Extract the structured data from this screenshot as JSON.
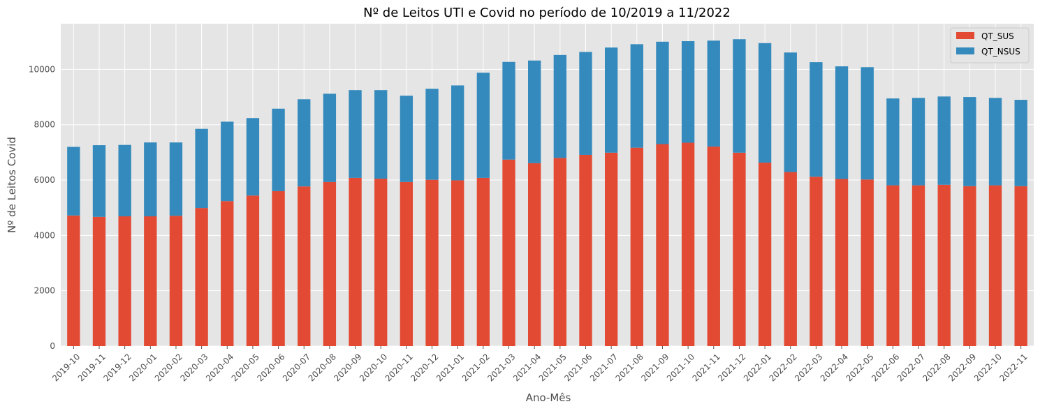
{
  "chart_data": {
    "type": "bar",
    "stacked": true,
    "title": "Nº de Leitos UTI e Covid no período de 10/2019 a 11/2022",
    "xlabel": "Ano-Mês",
    "ylabel": "Nº de Leitos Covid",
    "ylim": [
      0,
      11650
    ],
    "yticks": [
      0,
      2000,
      4000,
      6000,
      8000,
      10000
    ],
    "grid": true,
    "legend_position": "top-right",
    "categories": [
      "2019-10",
      "2019-11",
      "2019-12",
      "2020-01",
      "2020-02",
      "2020-03",
      "2020-04",
      "2020-05",
      "2020-06",
      "2020-07",
      "2020-08",
      "2020-09",
      "2020-10",
      "2020-11",
      "2020-12",
      "2021-01",
      "2021-02",
      "2021-03",
      "2021-04",
      "2021-05",
      "2021-06",
      "2021-07",
      "2021-08",
      "2021-09",
      "2021-10",
      "2021-11",
      "2021-12",
      "2022-01",
      "2022-02",
      "2022-03",
      "2022-04",
      "2022-05",
      "2022-06",
      "2022-07",
      "2022-08",
      "2022-09",
      "2022-10",
      "2022-11"
    ],
    "series": [
      {
        "name": "QT_SUS",
        "color": "#E24A33",
        "values": [
          4720,
          4670,
          4690,
          4690,
          4710,
          4990,
          5240,
          5440,
          5600,
          5770,
          5930,
          6080,
          6050,
          5930,
          6010,
          5990,
          6080,
          6740,
          6610,
          6800,
          6910,
          6990,
          7170,
          7300,
          7350,
          7210,
          6990,
          6630,
          6290,
          6120,
          6040,
          6020,
          5810,
          5810,
          5830,
          5780,
          5810,
          5780
        ]
      },
      {
        "name": "QT_NSUS",
        "color": "#348ABD",
        "values": [
          2480,
          2590,
          2580,
          2670,
          2650,
          2860,
          2870,
          2800,
          2980,
          3150,
          3190,
          3170,
          3200,
          3120,
          3290,
          3430,
          3800,
          3530,
          3710,
          3720,
          3720,
          3800,
          3740,
          3700,
          3670,
          3830,
          4100,
          4320,
          4320,
          4140,
          4070,
          4060,
          3140,
          3160,
          3190,
          3220,
          3160,
          3120
        ]
      }
    ]
  }
}
